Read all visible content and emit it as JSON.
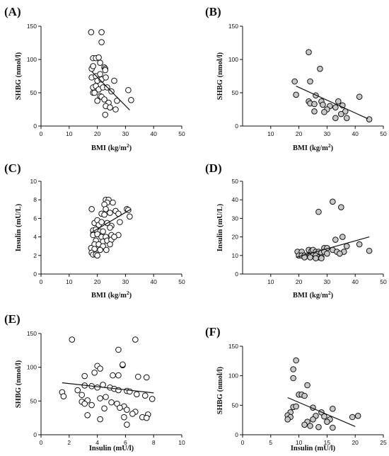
{
  "chart_data": [
    {
      "panel": "(A)",
      "type": "scatter",
      "xlabel": "BMI (kg/m2)",
      "ylabel": "SHBG (nmol/l)",
      "xlim": [
        0,
        50
      ],
      "ylim": [
        0,
        150
      ],
      "xticks": [
        0,
        10,
        20,
        30,
        40,
        50
      ],
      "yticks": [
        0,
        50,
        100,
        150
      ],
      "marker_fill": "#ffffff",
      "points": [
        [
          17.8,
          141
        ],
        [
          21.5,
          141
        ],
        [
          18.5,
          102
        ],
        [
          19.5,
          102
        ],
        [
          20.5,
          103
        ],
        [
          21.5,
          126
        ],
        [
          18,
          86
        ],
        [
          18.5,
          90
        ],
        [
          21,
          95
        ],
        [
          22.5,
          88
        ],
        [
          22.8,
          86
        ],
        [
          22.8,
          84
        ],
        [
          18,
          73
        ],
        [
          19.5,
          75
        ],
        [
          20,
          68
        ],
        [
          21,
          78
        ],
        [
          21.5,
          70
        ],
        [
          23,
          73
        ],
        [
          18.5,
          58
        ],
        [
          19.5,
          60
        ],
        [
          20.5,
          55
        ],
        [
          22,
          58
        ],
        [
          23.5,
          58
        ],
        [
          25,
          52
        ],
        [
          26,
          68
        ],
        [
          18.5,
          50
        ],
        [
          19,
          50
        ],
        [
          21,
          45
        ],
        [
          21.5,
          44
        ],
        [
          22.5,
          40
        ],
        [
          20,
          38
        ],
        [
          24,
          35
        ],
        [
          27,
          38
        ],
        [
          23,
          30
        ],
        [
          24.5,
          28
        ],
        [
          26.5,
          25
        ],
        [
          31,
          54
        ],
        [
          32,
          39
        ],
        [
          22.8,
          17
        ]
      ],
      "fit_line": [
        [
          18,
          82
        ],
        [
          31.5,
          24
        ]
      ]
    },
    {
      "panel": "(B)",
      "type": "scatter",
      "xlabel": "BMI (kg/m2)",
      "ylabel": "SHBG (nmol/l)",
      "xlim": [
        0,
        50
      ],
      "ylim": [
        0,
        150
      ],
      "xticks": [
        10,
        20,
        30,
        40,
        50
      ],
      "yticks": [
        0,
        50,
        100,
        150
      ],
      "marker_fill": "#c8c8c8",
      "points": [
        [
          23.5,
          111
        ],
        [
          27.5,
          86
        ],
        [
          18.5,
          67
        ],
        [
          24,
          67
        ],
        [
          19,
          47
        ],
        [
          26,
          46
        ],
        [
          23.5,
          37
        ],
        [
          28,
          37
        ],
        [
          34,
          37
        ],
        [
          41.5,
          44
        ],
        [
          28.5,
          32
        ],
        [
          31,
          30
        ],
        [
          33,
          28
        ],
        [
          24,
          34
        ],
        [
          25.5,
          33
        ],
        [
          35.5,
          31
        ],
        [
          30,
          25
        ],
        [
          36.5,
          22
        ],
        [
          25.5,
          22
        ],
        [
          29,
          21
        ],
        [
          35,
          18
        ],
        [
          33,
          12
        ],
        [
          37,
          12
        ],
        [
          45,
          10
        ]
      ],
      "fit_line": [
        [
          19,
          60
        ],
        [
          44.5,
          11
        ]
      ]
    },
    {
      "panel": "(C)",
      "type": "scatter",
      "xlabel": "BMI (kg/m2)",
      "ylabel": "Insulin (mU/L)",
      "xlim": [
        0,
        50
      ],
      "ylim": [
        0,
        10
      ],
      "xticks": [
        0,
        10,
        20,
        30,
        40,
        50
      ],
      "yticks": [
        0,
        2,
        4,
        6,
        8,
        10
      ],
      "marker_fill": "#ffffff",
      "points": [
        [
          23,
          8
        ],
        [
          24,
          8
        ],
        [
          23.5,
          7.7
        ],
        [
          25.5,
          7.7
        ],
        [
          18,
          7
        ],
        [
          22.5,
          7.5
        ],
        [
          23,
          7
        ],
        [
          26.5,
          6.8
        ],
        [
          27.5,
          6.5
        ],
        [
          30.5,
          7
        ],
        [
          31,
          6.9
        ],
        [
          31.5,
          6.2
        ],
        [
          21.5,
          6.5
        ],
        [
          22.5,
          6.4
        ],
        [
          24.5,
          6.6
        ],
        [
          19,
          5.5
        ],
        [
          20,
          5.8
        ],
        [
          20.5,
          5.3
        ],
        [
          21.5,
          5.6
        ],
        [
          23.5,
          5.5
        ],
        [
          25,
          5.2
        ],
        [
          28,
          5.6
        ],
        [
          18.5,
          4.7
        ],
        [
          19.5,
          4.8
        ],
        [
          21,
          4.6
        ],
        [
          22,
          4.6
        ],
        [
          24.5,
          5
        ],
        [
          18.5,
          4.2
        ],
        [
          20,
          4.3
        ],
        [
          21.5,
          4
        ],
        [
          23,
          4
        ],
        [
          25,
          4.2
        ],
        [
          27.5,
          4.2
        ],
        [
          19.5,
          3.6
        ],
        [
          22,
          3.5
        ],
        [
          23.5,
          3.6
        ],
        [
          25,
          3.7
        ],
        [
          26,
          4
        ],
        [
          19,
          3.2
        ],
        [
          20.5,
          3.2
        ],
        [
          22,
          3
        ],
        [
          24.5,
          3.2
        ],
        [
          17.8,
          2.8
        ],
        [
          19,
          2.7
        ],
        [
          21,
          2.6
        ],
        [
          23.2,
          2.6
        ],
        [
          18,
          2.3
        ],
        [
          18.5,
          2.1
        ],
        [
          19.5,
          2.1
        ],
        [
          20,
          2
        ]
      ],
      "fit_line": [
        [
          17.5,
          4.4
        ],
        [
          32,
          7
        ]
      ]
    },
    {
      "panel": "(D)",
      "type": "scatter",
      "xlabel": "BMI (kg/m2)",
      "ylabel": "Insulin (mU/L)",
      "xlim": [
        0,
        50
      ],
      "ylim": [
        0,
        50
      ],
      "xticks": [
        10,
        20,
        30,
        40,
        50
      ],
      "yticks": [
        0,
        10,
        20,
        30,
        40,
        50
      ],
      "marker_fill": "#c8c8c8",
      "points": [
        [
          32,
          39
        ],
        [
          35,
          36
        ],
        [
          27,
          33.5
        ],
        [
          33,
          18.5
        ],
        [
          35.5,
          20
        ],
        [
          37,
          15
        ],
        [
          41.5,
          16
        ],
        [
          45,
          12.5
        ],
        [
          29,
          14
        ],
        [
          30,
          14
        ],
        [
          32,
          13
        ],
        [
          33.5,
          12
        ],
        [
          36,
          12
        ],
        [
          34.5,
          11
        ],
        [
          19.5,
          12
        ],
        [
          21,
          12
        ],
        [
          23.5,
          13
        ],
        [
          24.5,
          12.5
        ],
        [
          25,
          13
        ],
        [
          26,
          12
        ],
        [
          27,
          12
        ],
        [
          28,
          11.5
        ],
        [
          29,
          12
        ],
        [
          30,
          11
        ],
        [
          20,
          10
        ],
        [
          21,
          10
        ],
        [
          22,
          10
        ],
        [
          23,
          10
        ],
        [
          24,
          10
        ],
        [
          25,
          10
        ],
        [
          26,
          10
        ],
        [
          27,
          9
        ],
        [
          28,
          9
        ],
        [
          22,
          9
        ],
        [
          24,
          9
        ],
        [
          26,
          8.5
        ],
        [
          28,
          8.5
        ]
      ],
      "fit_line": [
        [
          19,
          9
        ],
        [
          45,
          20
        ]
      ]
    },
    {
      "panel": "(E)",
      "type": "scatter",
      "xlabel": "Insulin (mU/l)",
      "ylabel": "SHBG (nmol/l)",
      "xlim": [
        0,
        10
      ],
      "ylim": [
        0,
        150
      ],
      "xticks": [
        0,
        2,
        4,
        6,
        8,
        10
      ],
      "yticks": [
        0,
        50,
        100,
        150
      ],
      "marker_fill": "#ffffff",
      "points": [
        [
          2.2,
          141
        ],
        [
          6.7,
          141
        ],
        [
          5.5,
          126
        ],
        [
          4.0,
          102
        ],
        [
          4.2,
          98
        ],
        [
          5.8,
          103
        ],
        [
          5.8,
          104
        ],
        [
          3.8,
          92
        ],
        [
          5.1,
          88
        ],
        [
          5.5,
          88
        ],
        [
          6.9,
          86
        ],
        [
          7.5,
          85
        ],
        [
          3.1,
          87
        ],
        [
          4.4,
          74
        ],
        [
          3.1,
          73
        ],
        [
          3.6,
          72
        ],
        [
          4.0,
          70
        ],
        [
          4.9,
          70
        ],
        [
          5.2,
          68
        ],
        [
          5.5,
          66
        ],
        [
          6.1,
          65
        ],
        [
          6.3,
          64
        ],
        [
          6.8,
          60
        ],
        [
          7.4,
          58
        ],
        [
          1.5,
          63
        ],
        [
          1.6,
          57
        ],
        [
          2.6,
          66
        ],
        [
          2.9,
          59
        ],
        [
          3.3,
          51
        ],
        [
          4.2,
          54
        ],
        [
          4.6,
          56
        ],
        [
          5.0,
          48
        ],
        [
          5.4,
          46
        ],
        [
          5.9,
          42
        ],
        [
          2.9,
          49
        ],
        [
          3.1,
          46
        ],
        [
          3.6,
          44
        ],
        [
          4.5,
          39
        ],
        [
          5.6,
          40
        ],
        [
          6.1,
          37
        ],
        [
          6.7,
          34
        ],
        [
          3.3,
          29
        ],
        [
          4.2,
          23
        ],
        [
          5.9,
          26
        ],
        [
          6.5,
          31
        ],
        [
          7.2,
          26
        ],
        [
          7.6,
          30
        ],
        [
          7.5,
          25
        ],
        [
          6.1,
          15
        ],
        [
          7.9,
          53
        ]
      ],
      "fit_line": [
        [
          1.5,
          77
        ],
        [
          8,
          62
        ]
      ]
    },
    {
      "panel": "(F)",
      "type": "scatter",
      "xlabel": "Insulin (mU/l)",
      "ylabel": "SHBG (nmol/l)",
      "xlim": [
        0,
        25
      ],
      "ylim": [
        0,
        150
      ],
      "xticks": [
        0,
        5,
        10,
        15,
        20,
        25
      ],
      "yticks": [
        0,
        50,
        100,
        150
      ],
      "marker_fill": "#c8c8c8",
      "points": [
        [
          9.5,
          126
        ],
        [
          9,
          111
        ],
        [
          9,
          96
        ],
        [
          11.5,
          84
        ],
        [
          10,
          68
        ],
        [
          10.5,
          68
        ],
        [
          11,
          66
        ],
        [
          9,
          47
        ],
        [
          9.5,
          48
        ],
        [
          8.5,
          38
        ],
        [
          12.5,
          46
        ],
        [
          14,
          38
        ],
        [
          13,
          32
        ],
        [
          16,
          44
        ],
        [
          11.5,
          22
        ],
        [
          12.5,
          26
        ],
        [
          14.5,
          31
        ],
        [
          15.5,
          26
        ],
        [
          11,
          17
        ],
        [
          12,
          15
        ],
        [
          13.5,
          13
        ],
        [
          16,
          12
        ],
        [
          15,
          22
        ],
        [
          8,
          33
        ],
        [
          8.5,
          30
        ],
        [
          8,
          26
        ],
        [
          19.5,
          30
        ],
        [
          20.5,
          32
        ]
      ],
      "fit_line": [
        [
          8,
          63
        ],
        [
          20,
          14
        ]
      ]
    }
  ]
}
